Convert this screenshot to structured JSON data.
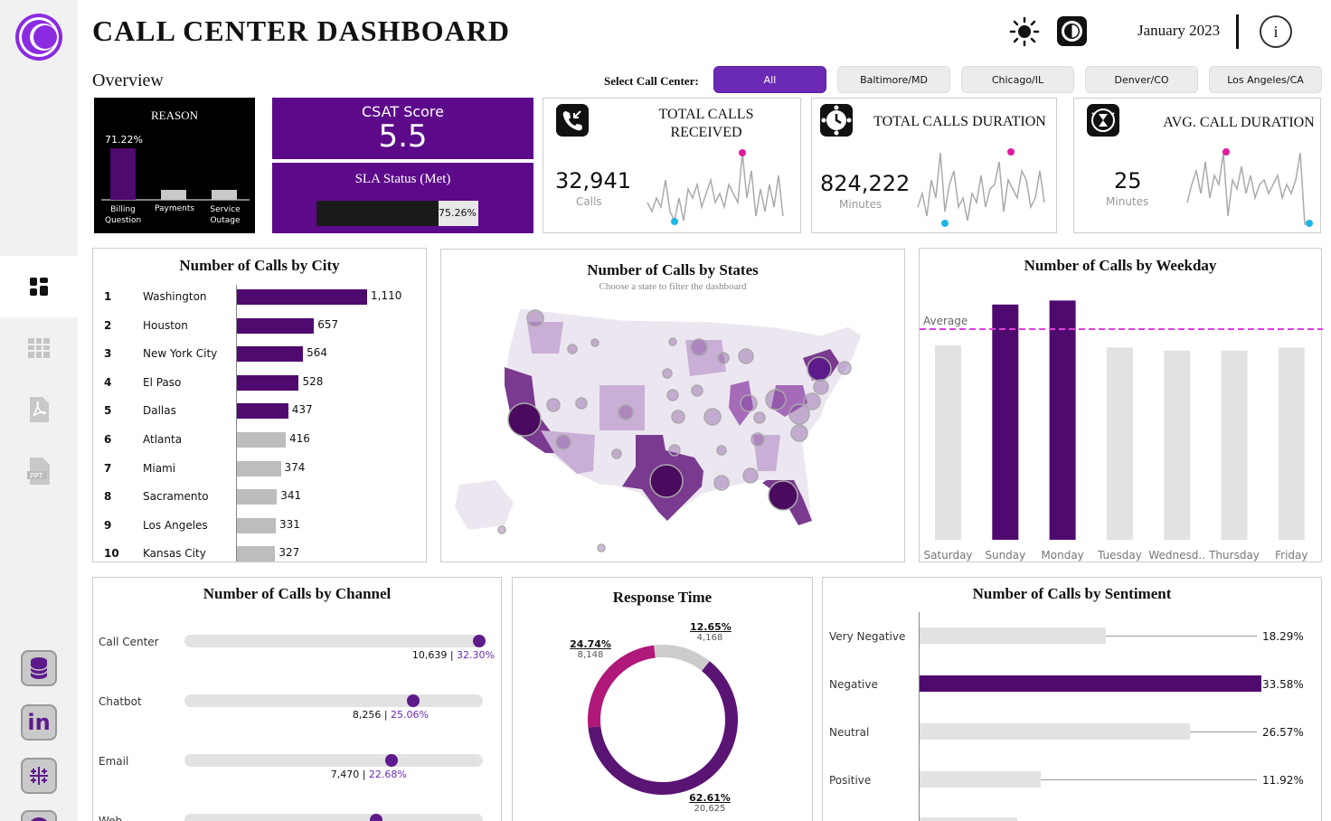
{
  "header": {
    "title": "CALL CENTER DASHBOARD",
    "month": "January 2023",
    "info_symbol": "i"
  },
  "overview_label": "Overview",
  "filter": {
    "label": "Select Call Center:",
    "options": [
      "All",
      "Baltimore/MD",
      "Chicago/IL",
      "Denver/CO",
      "Los Angeles/CA"
    ],
    "selected": "All"
  },
  "reason": {
    "title": "REASON",
    "top_pct": "71.22%",
    "bars": [
      {
        "label1": "Billing",
        "label2": "Question",
        "value": 71.22
      },
      {
        "label1": "Payments",
        "label2": "",
        "value": 12
      },
      {
        "label1": "Service",
        "label2": "Outage",
        "value": 12
      }
    ]
  },
  "csat": {
    "label": "CSAT Score",
    "value": "5.5"
  },
  "sla": {
    "label": "SLA Status (Met)",
    "pct_text": "75.26%",
    "pct": 75.26
  },
  "kpis": [
    {
      "title_l1": "TOTAL CALLS",
      "title_l2": "RECEIVED",
      "value": "32,941",
      "unit": "Calls",
      "icon": "phone-incoming-icon"
    },
    {
      "title_l1": "TOTAL CALLS DURATION",
      "title_l2": "",
      "value": "824,222",
      "unit": "Minutes",
      "icon": "clock-icon"
    },
    {
      "title_l1": "AVG. CALL DURATION",
      "title_l2": "",
      "value": "25",
      "unit": "Minutes",
      "icon": "hourglass-icon"
    }
  ],
  "city": {
    "title": "Number of Calls by City",
    "rows": [
      {
        "rank": "1",
        "name": "Washington",
        "value": 1110,
        "label": "1,110"
      },
      {
        "rank": "2",
        "name": "Houston",
        "value": 657,
        "label": "657"
      },
      {
        "rank": "3",
        "name": "New York City",
        "value": 564,
        "label": "564"
      },
      {
        "rank": "4",
        "name": "El Paso",
        "value": 528,
        "label": "528"
      },
      {
        "rank": "5",
        "name": "Dallas",
        "value": 437,
        "label": "437"
      },
      {
        "rank": "6",
        "name": "Atlanta",
        "value": 416,
        "label": "416"
      },
      {
        "rank": "7",
        "name": "Miami",
        "value": 374,
        "label": "374"
      },
      {
        "rank": "8",
        "name": "Sacramento",
        "value": 341,
        "label": "341"
      },
      {
        "rank": "9",
        "name": "Los Angeles",
        "value": 331,
        "label": "331"
      },
      {
        "rank": "10",
        "name": "Kansas City",
        "value": 327,
        "label": "327"
      }
    ]
  },
  "states": {
    "title": "Number of Calls by States",
    "subtitle": "Choose a state to filter the dashboard"
  },
  "weekday": {
    "title": "Number of Calls by Weekday",
    "avg_label": "Average",
    "categories": [
      "Saturday",
      "Sunday",
      "Monday",
      "Tuesday",
      "Wednesd..",
      "Thursday",
      "Friday"
    ],
    "values": [
      4350,
      5260,
      5350,
      4300,
      4230,
      4230,
      4300
    ],
    "average": 4710,
    "highlight": [
      false,
      true,
      true,
      false,
      false,
      false,
      false
    ]
  },
  "channel": {
    "title": "Number of Calls by Channel",
    "rows": [
      {
        "name": "Call Center",
        "value": "10,639",
        "pct": "32.30%",
        "fraction": 1.0
      },
      {
        "name": "Chatbot",
        "value": "8,256",
        "pct": "25.06%",
        "fraction": 0.776
      },
      {
        "name": "Email",
        "value": "7,470",
        "pct": "22.68%",
        "fraction": 0.702
      },
      {
        "name": "Web",
        "value": "",
        "pct": "",
        "fraction": 0.65
      }
    ]
  },
  "response": {
    "title": "Response Time",
    "segments": [
      {
        "pct": "62.61%",
        "count": "20,625",
        "value": 62.61,
        "color": "#5a1474"
      },
      {
        "pct": "24.74%",
        "count": "8,148",
        "value": 24.74,
        "color": "#b0187a"
      },
      {
        "pct": "12.65%",
        "count": "4,168",
        "value": 12.65,
        "color": "#cccccc"
      }
    ]
  },
  "sentiment": {
    "title": "Number of Calls by Sentiment",
    "rows": [
      {
        "name": "Very Negative",
        "pct": "18.29%",
        "value": 18.29
      },
      {
        "name": "Negative",
        "pct": "33.58%",
        "value": 33.58
      },
      {
        "name": "Neutral",
        "pct": "26.57%",
        "value": 26.57
      },
      {
        "name": "Positive",
        "pct": "11.92%",
        "value": 11.92
      }
    ]
  },
  "chart_data": [
    {
      "type": "bar",
      "title": "Number of Calls by City",
      "categories": [
        "Washington",
        "Houston",
        "New York City",
        "El Paso",
        "Dallas",
        "Atlanta",
        "Miami",
        "Sacramento",
        "Los Angeles",
        "Kansas City"
      ],
      "values": [
        1110,
        657,
        564,
        528,
        437,
        416,
        374,
        341,
        331,
        327
      ]
    },
    {
      "type": "bar",
      "title": "Number of Calls by Weekday",
      "categories": [
        "Saturday",
        "Sunday",
        "Monday",
        "Tuesday",
        "Wednesd..",
        "Thursday",
        "Friday"
      ],
      "values": [
        4350,
        5260,
        5350,
        4300,
        4230,
        4230,
        4300
      ]
    },
    {
      "type": "pie",
      "title": "Response Time",
      "categories": [
        "62.61%",
        "24.74%",
        "12.65%"
      ],
      "values": [
        20625,
        8148,
        4168
      ]
    },
    {
      "type": "bar",
      "title": "Number of Calls by Sentiment",
      "categories": [
        "Very Negative",
        "Negative",
        "Neutral",
        "Positive"
      ],
      "values": [
        18.29,
        33.58,
        26.57,
        11.92
      ]
    },
    {
      "type": "bar",
      "title": "Number of Calls by Channel",
      "categories": [
        "Call Center",
        "Chatbot",
        "Email"
      ],
      "values": [
        10639,
        8256,
        7470
      ]
    }
  ],
  "colors": {
    "purple": "#4f0a6f",
    "accent": "#6b2ab5",
    "bright_purple": "#5c1a8a",
    "pink": "#e11aa0",
    "blue": "#1eb6e6",
    "grey": "#bdbdbd"
  }
}
